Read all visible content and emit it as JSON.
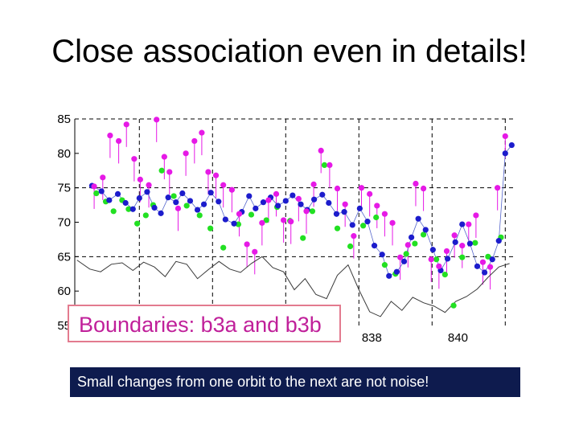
{
  "slide": {
    "title": "Close association even in details!",
    "callout": "Boundaries: b3a and b3b",
    "caption": "Small changes from one orbit to the next are not noise!"
  },
  "colors": {
    "magenta": "#e619e6",
    "blue": "#1c1ccc",
    "green": "#22e022",
    "black_line": "#333333",
    "callout_text": "#c0209a",
    "caption_bg": "#0e1b4e"
  },
  "chart_data": {
    "type": "scatter",
    "title": "",
    "xlabel": "",
    "ylabel": "",
    "xlim": [
      831.1,
      841.3
    ],
    "ylim": [
      55,
      85
    ],
    "yticks": [
      55,
      60,
      65,
      70,
      75,
      80,
      85
    ],
    "xticks": [
      838,
      840
    ],
    "x_gridlines": [
      832.6,
      834.3,
      836.0,
      837.7,
      839.4,
      841.1
    ],
    "y_gridlines": [
      65,
      75,
      85
    ],
    "grid": "dashed",
    "series": [
      {
        "name": "blue",
        "color": "#1c1ccc",
        "x": [
          831.5,
          831.72,
          831.9,
          832.1,
          832.28,
          832.45,
          832.6,
          832.78,
          832.95,
          833.1,
          833.27,
          833.45,
          833.6,
          833.78,
          833.95,
          834.1,
          834.26,
          834.44,
          834.6,
          834.8,
          834.98,
          835.15,
          835.3,
          835.48,
          835.65,
          835.82,
          836.0,
          836.16,
          836.35,
          836.5,
          836.66,
          836.85,
          837.0,
          837.18,
          837.36,
          837.55,
          837.72,
          837.9,
          838.06,
          838.24,
          838.4,
          838.58,
          838.75,
          838.92,
          839.08,
          839.25,
          839.42,
          839.6,
          839.76,
          839.94,
          840.1,
          840.28,
          840.45,
          840.62,
          840.8,
          840.95,
          841.1,
          841.25
        ],
        "values": [
          75.3,
          74.5,
          73.2,
          74.1,
          72.8,
          71.9,
          73.5,
          74.4,
          72.1,
          71.3,
          73.6,
          72.9,
          74.2,
          73.1,
          71.8,
          72.6,
          74.3,
          73.0,
          70.4,
          69.8,
          71.5,
          73.8,
          72.0,
          72.9,
          73.6,
          72.4,
          73.1,
          73.9,
          72.6,
          71.8,
          73.3,
          74.0,
          72.8,
          71.2,
          71.5,
          69.6,
          72.0,
          70.1,
          66.6,
          65.3,
          62.2,
          62.8,
          64.3,
          67.8,
          70.5,
          68.9,
          66.0,
          63.0,
          64.7,
          67.1,
          69.7,
          66.9,
          63.6,
          62.7,
          64.6,
          67.3,
          80.0,
          81.2
        ]
      },
      {
        "name": "green",
        "color": "#22e022",
        "x": [
          831.6,
          831.82,
          832.0,
          832.2,
          832.35,
          832.55,
          832.75,
          832.92,
          833.12,
          833.4,
          833.7,
          834.0,
          834.25,
          834.55,
          834.9,
          835.2,
          835.55,
          835.8,
          836.1,
          836.4,
          836.62,
          836.9,
          837.2,
          837.5,
          837.8,
          838.1,
          838.3,
          838.55,
          838.8,
          839.0,
          839.2,
          839.5,
          839.7,
          839.9,
          840.1,
          840.4,
          840.7,
          841.0
        ],
        "values": [
          74.2,
          73.0,
          71.6,
          73.2,
          71.9,
          69.8,
          71.0,
          72.5,
          77.5,
          73.8,
          72.4,
          71.0,
          69.1,
          66.3,
          69.7,
          71.1,
          70.3,
          72.2,
          70.2,
          67.7,
          71.6,
          78.3,
          69.1,
          66.5,
          69.5,
          70.7,
          63.8,
          62.5,
          65.4,
          66.9,
          68.2,
          64.6,
          62.4,
          57.9,
          64.9,
          67.0,
          65.0,
          67.8
        ]
      },
      {
        "name": "magenta",
        "color": "#e619e6",
        "x": [
          831.55,
          831.75,
          831.92,
          832.12,
          832.3,
          832.48,
          832.62,
          832.82,
          833.0,
          833.18,
          833.3,
          833.5,
          833.68,
          833.88,
          834.05,
          834.2,
          834.38,
          834.55,
          834.75,
          834.92,
          835.1,
          835.28,
          835.45,
          835.6,
          835.78,
          835.95,
          836.12,
          836.3,
          836.48,
          836.65,
          836.82,
          837.02,
          837.2,
          837.38,
          837.58,
          837.76,
          837.95,
          838.12,
          838.3,
          838.48,
          838.66,
          838.84,
          839.02,
          839.2,
          839.38,
          839.56,
          839.74,
          839.92,
          840.1,
          840.25,
          840.42,
          840.58,
          840.75,
          840.92,
          841.1
        ],
        "values": [
          75.2,
          76.5,
          82.6,
          81.8,
          84.2,
          79.2,
          76.2,
          75.4,
          84.9,
          79.5,
          77.3,
          72.0,
          80.0,
          81.8,
          83.0,
          77.3,
          76.8,
          75.4,
          74.7,
          71.2,
          66.8,
          65.7,
          69.9,
          73.2,
          74.1,
          70.3,
          70.1,
          73.4,
          71.6,
          75.5,
          80.4,
          78.3,
          74.9,
          72.6,
          68.0,
          75.0,
          74.1,
          72.4,
          71.2,
          69.9,
          64.9,
          66.7,
          75.6,
          74.9,
          64.6,
          63.6,
          65.8,
          68.1,
          66.6,
          69.7,
          71.0,
          64.2,
          63.5,
          75.0,
          82.5
        ]
      },
      {
        "name": "black",
        "color": "#333333",
        "x": [
          831.15,
          831.45,
          831.7,
          831.95,
          832.2,
          832.45,
          832.7,
          832.95,
          833.2,
          833.45,
          833.7,
          833.95,
          834.2,
          834.45,
          834.7,
          834.95,
          835.2,
          835.45,
          835.7,
          835.95,
          836.2,
          836.45,
          836.7,
          836.95,
          837.2,
          837.45,
          837.7,
          837.95,
          838.2,
          838.45,
          838.7,
          838.95,
          839.2,
          839.45,
          839.7,
          839.95,
          840.2,
          840.45,
          840.7,
          840.95,
          841.2
        ],
        "values": [
          64.5,
          63.2,
          62.8,
          63.9,
          64.1,
          63.0,
          64.2,
          63.5,
          62.1,
          64.3,
          63.9,
          61.8,
          63.1,
          64.3,
          63.2,
          62.7,
          64.0,
          65.0,
          63.4,
          62.8,
          60.2,
          61.8,
          59.5,
          58.9,
          62.3,
          63.8,
          60.2,
          57.0,
          56.3,
          58.5,
          57.2,
          59.1,
          58.3,
          57.8,
          56.9,
          58.5,
          59.2,
          60.3,
          62.0,
          63.5,
          64.0
        ]
      }
    ]
  }
}
